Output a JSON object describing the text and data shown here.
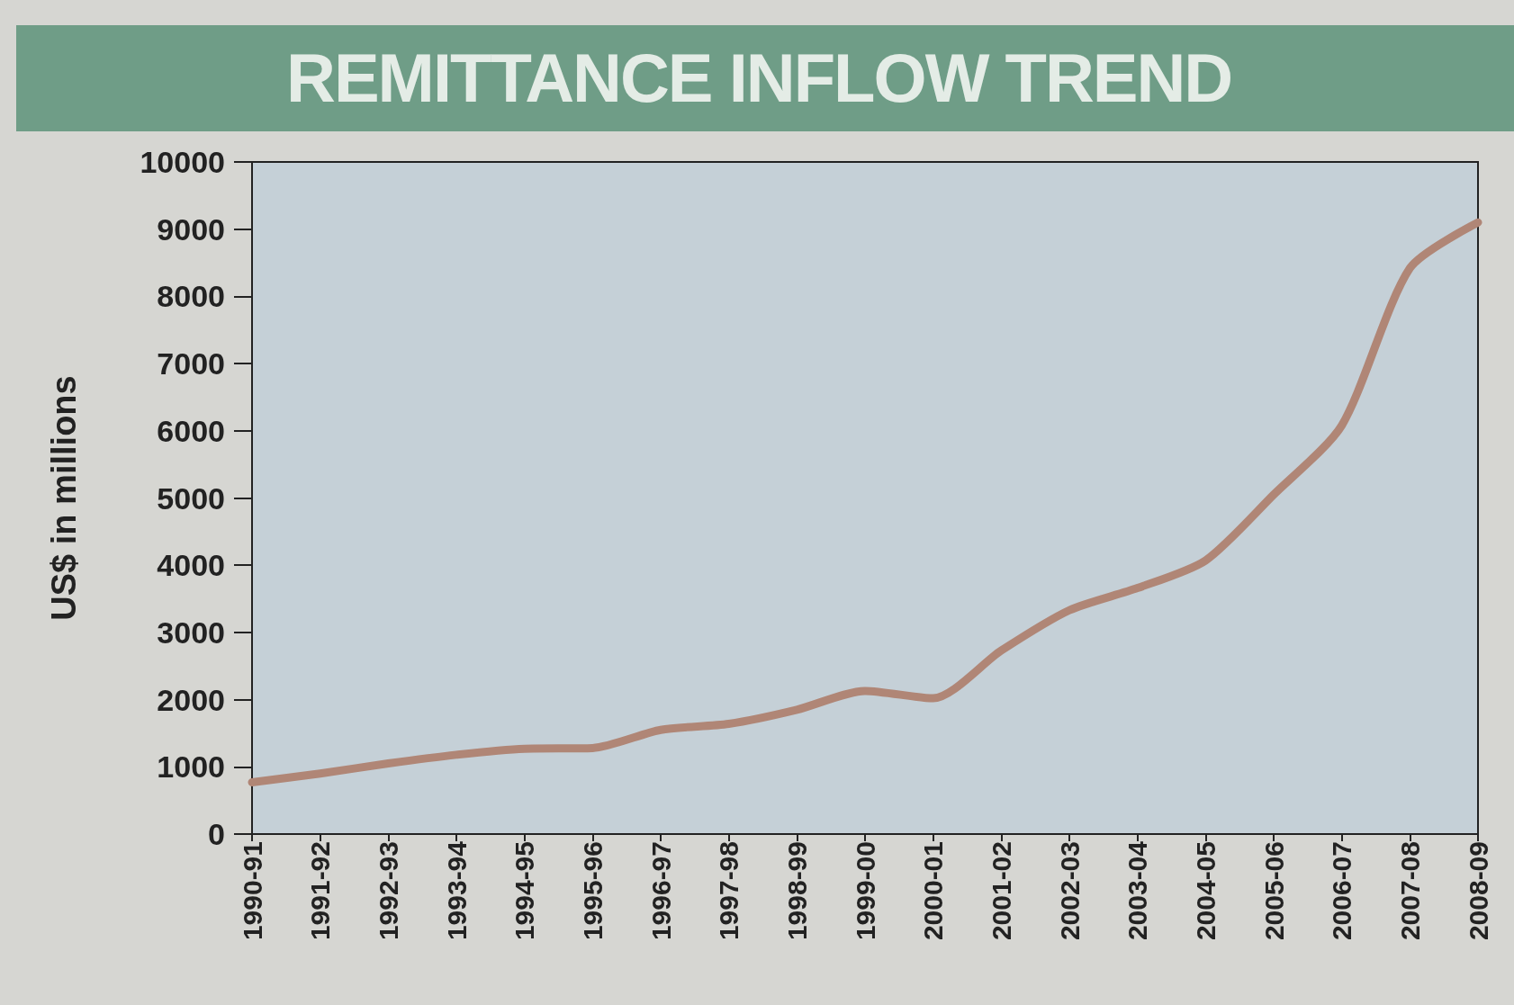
{
  "chart_data": {
    "type": "line",
    "title": "REMITTANCE INFLOW TREND",
    "ylabel": "US$ in millions",
    "categories": [
      "1990-91",
      "1991-92",
      "1992-93",
      "1993-94",
      "1994-95",
      "1995-96",
      "1996-97",
      "1997-98",
      "1998-99",
      "1999-00",
      "2000-01",
      "2001-02",
      "2002-03",
      "2003-04",
      "2004-05",
      "2005-06",
      "2006-07",
      "2007-08",
      "2008-09"
    ],
    "series": [
      {
        "color": "#b08676",
        "values": [
          770,
          900,
          1050,
          1180,
          1270,
          1280,
          1550,
          1640,
          1850,
          2130,
          2020,
          2730,
          3330,
          3660,
          4070,
          5050,
          6080,
          8420,
          9100
        ]
      }
    ],
    "ylim": [
      0,
      10000
    ],
    "yticks": [
      0,
      1000,
      2000,
      3000,
      4000,
      5000,
      6000,
      7000,
      8000,
      9000,
      10000
    ],
    "grid": false,
    "line_style": "solid"
  }
}
